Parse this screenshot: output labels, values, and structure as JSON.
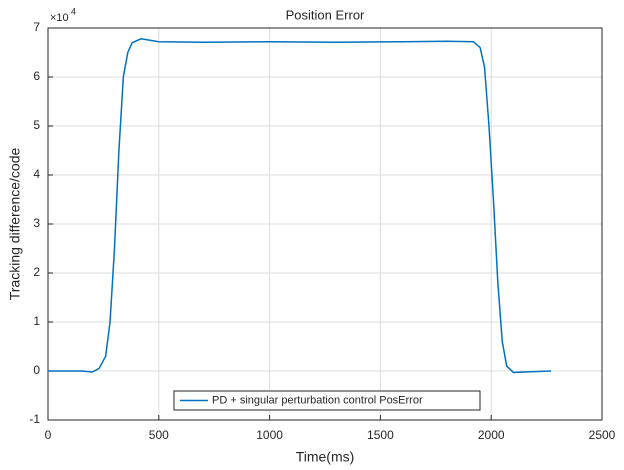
{
  "chart_data": {
    "type": "line",
    "title": "Position Error",
    "xlabel": "Time(ms)",
    "ylabel": "Tracking difference/code",
    "y_multiplier": {
      "base": "×10",
      "exponent": "4"
    },
    "x": [
      0,
      150,
      200,
      230,
      260,
      280,
      300,
      320,
      340,
      360,
      380,
      420,
      460,
      500,
      700,
      1000,
      1300,
      1600,
      1800,
      1920,
      1950,
      1970,
      1990,
      2010,
      2030,
      2050,
      2070,
      2100,
      2150,
      2270
    ],
    "series": [
      {
        "name": "PD + singular perturbation control PosError",
        "color": "#0072bd",
        "values": [
          0,
          0,
          -0.02,
          0.05,
          0.3,
          1,
          2.5,
          4.5,
          6,
          6.5,
          6.7,
          6.78,
          6.75,
          6.72,
          6.71,
          6.72,
          6.71,
          6.72,
          6.73,
          6.72,
          6.6,
          6.2,
          5,
          3.5,
          1.8,
          0.6,
          0.1,
          -0.03,
          -0.02,
          0
        ]
      }
    ],
    "xlim": [
      0,
      2500
    ],
    "xticks": [
      0,
      500,
      1000,
      1500,
      2000,
      2500
    ],
    "ylim": [
      -1,
      7
    ],
    "yticks": [
      -1,
      0,
      1,
      2,
      3,
      4,
      5,
      6,
      7
    ],
    "grid": true,
    "legend": "bottom"
  }
}
